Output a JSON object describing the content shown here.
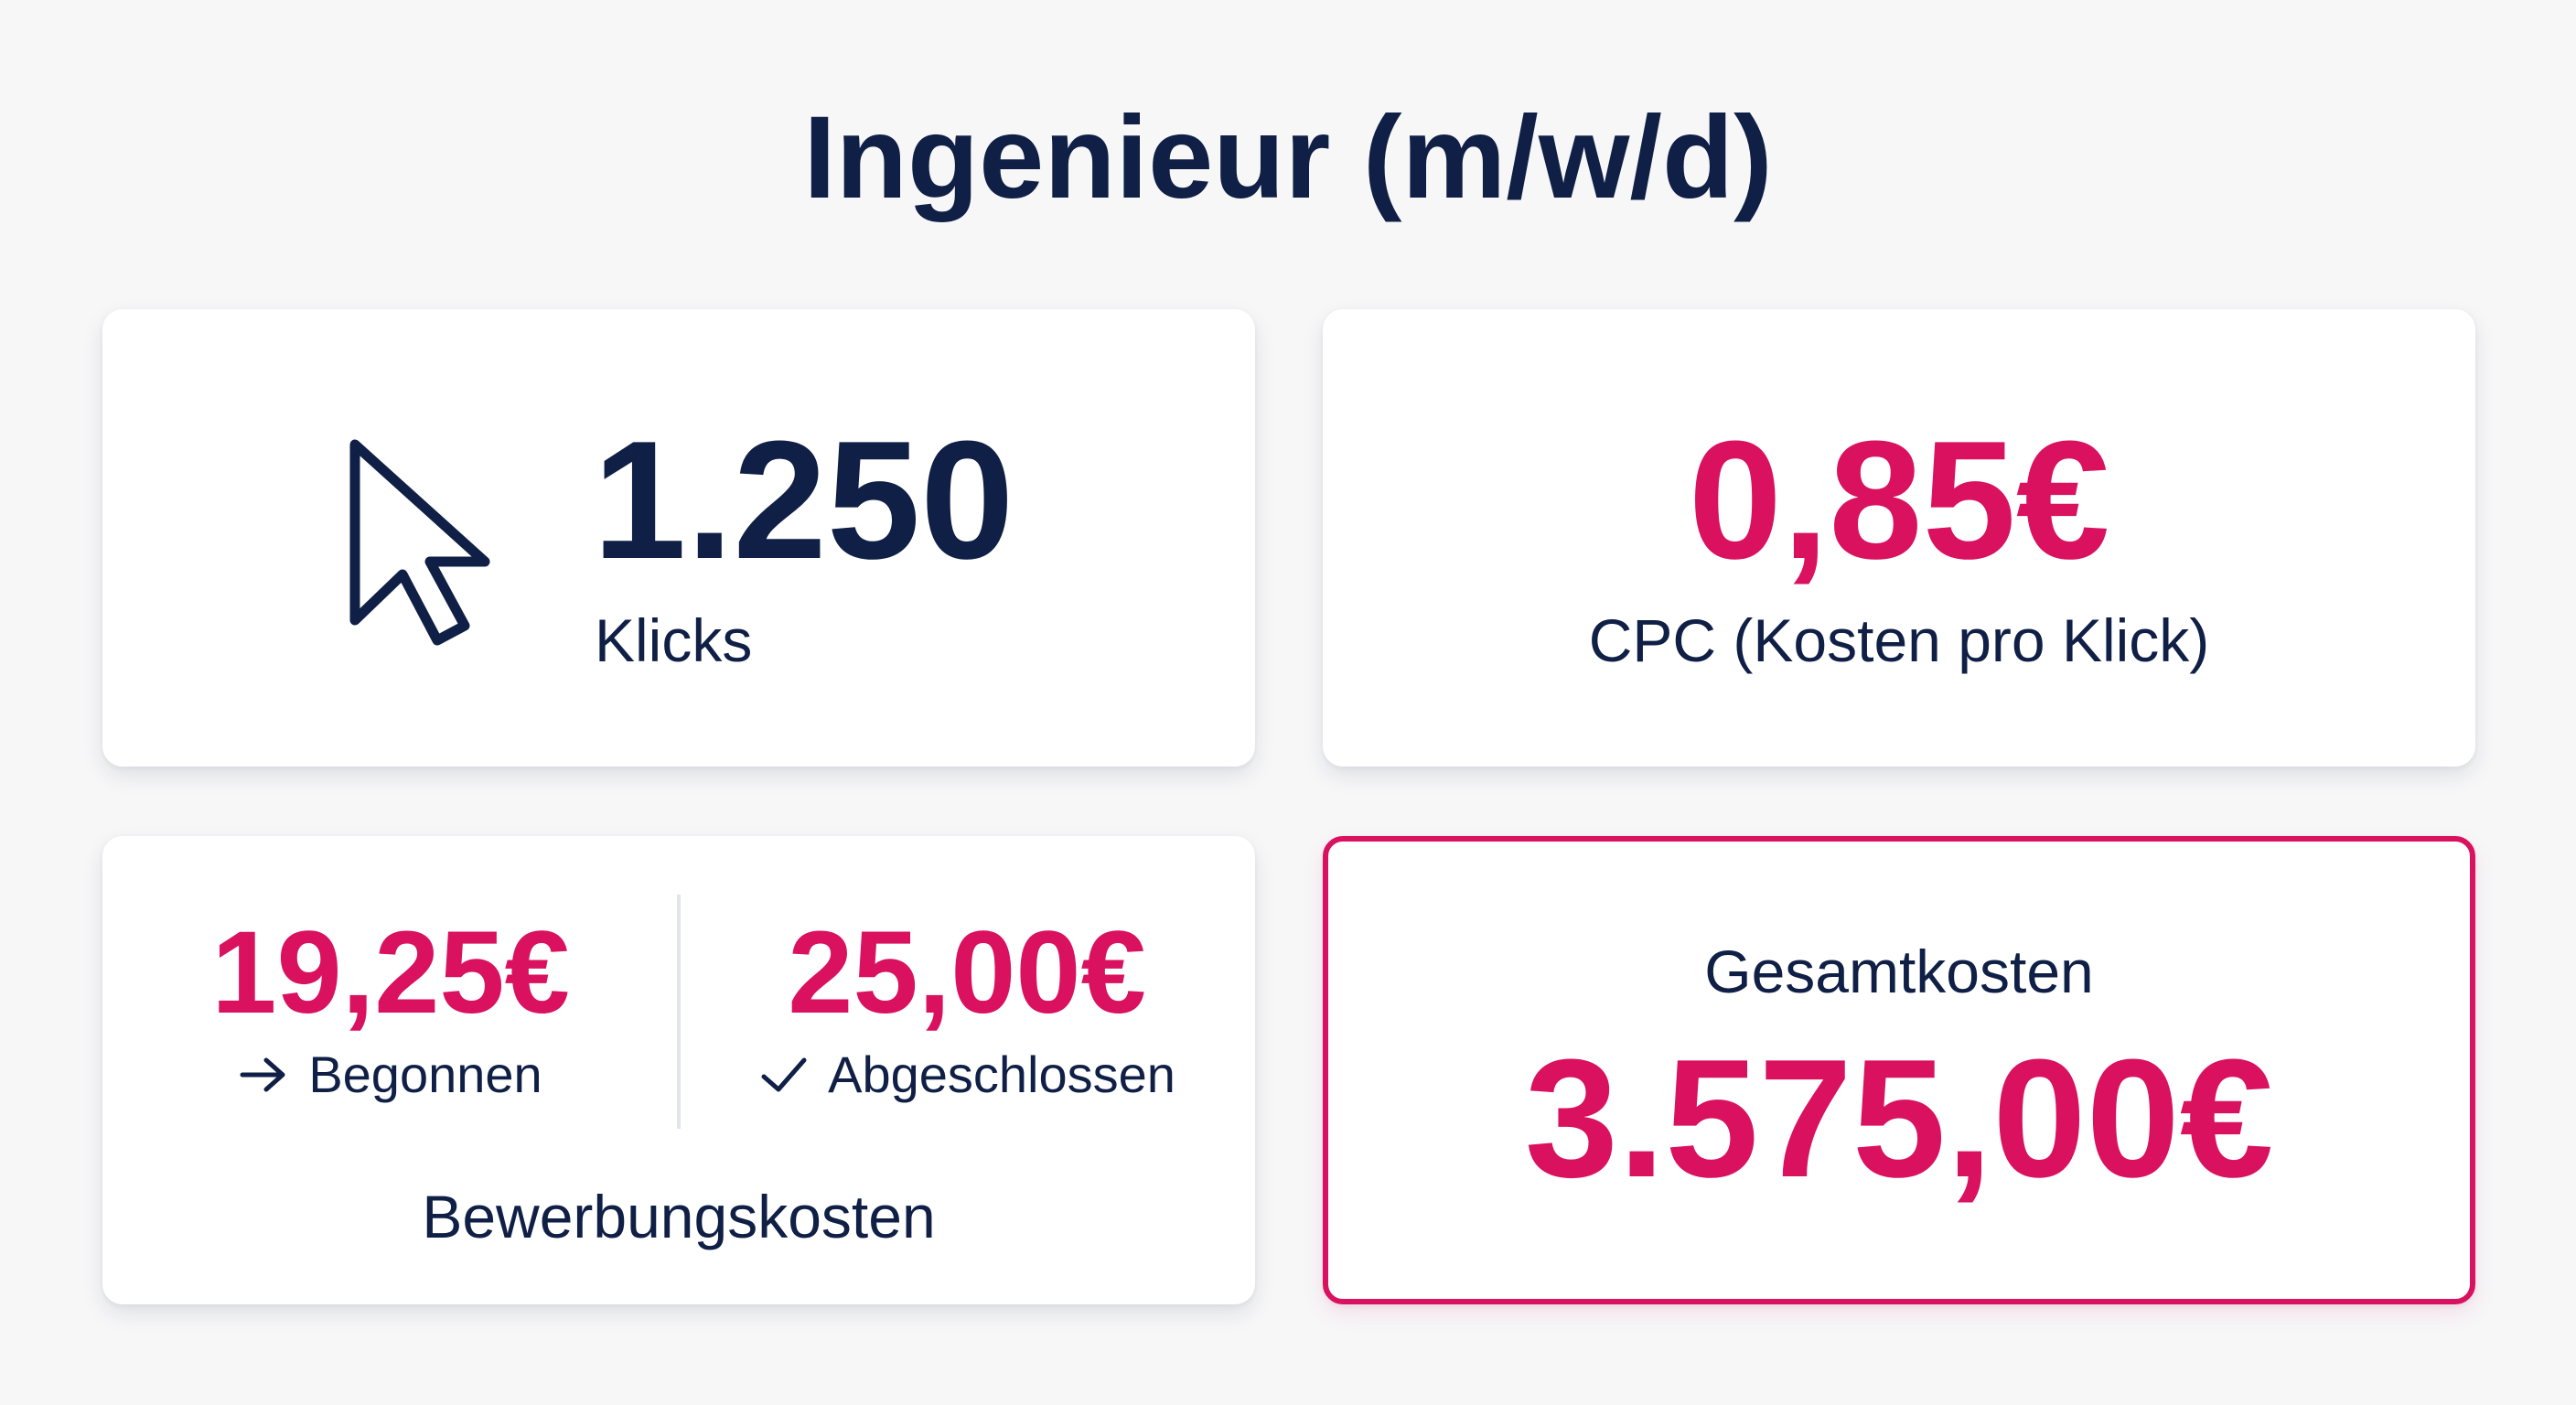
{
  "page": {
    "title": "Ingenieur (m/w/d)"
  },
  "colors": {
    "accent": "#d9115f",
    "text": "#0f1f45",
    "background": "#f7f7f8",
    "card": "#ffffff"
  },
  "cards": {
    "clicks": {
      "icon": "mouse-cursor-icon",
      "value": "1.250",
      "label": "Klicks"
    },
    "cpc": {
      "value": "0,85€",
      "label": "CPC (Kosten pro Klick)"
    },
    "application_costs": {
      "started": {
        "icon": "arrow-right-icon",
        "value": "19,25€",
        "label": "Begonnen"
      },
      "completed": {
        "icon": "checkmark-icon",
        "value": "25,00€",
        "label": "Abgeschlossen"
      },
      "label": "Bewerbungskosten"
    },
    "total": {
      "label": "Gesamtkosten",
      "value": "3.575,00€"
    }
  }
}
